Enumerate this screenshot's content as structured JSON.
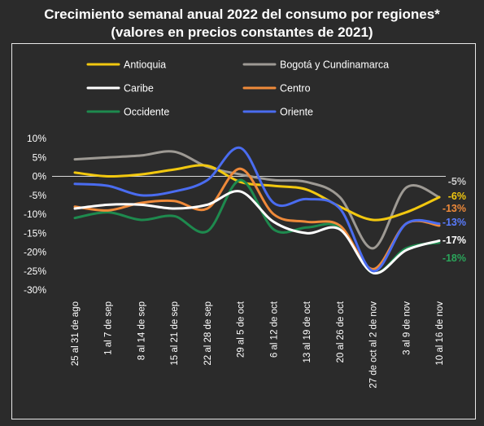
{
  "chart_data": {
    "type": "line",
    "title": "Crecimiento semanal anual 2022 del consumo por regiones*",
    "subtitle": "(valores en precios constantes de 2021)",
    "categories": [
      "25 al 31 de ago",
      "1 al 7 de sep",
      "8 al 14 de sep",
      "15 al 21 de sep",
      "22 al 28 de sep",
      "29 al 5 de oct",
      "6 al 12 de oct",
      "13 al 19 de oct",
      "20 al 26 de oct",
      "27 de oct al 2 de nov",
      "3 al 9 de nov",
      "10 al 16 de nov"
    ],
    "ylim": [
      -30,
      10
    ],
    "yticks": [
      "10%",
      "5%",
      "0%",
      "-5%",
      "-10%",
      "-15%",
      "-20%",
      "-25%",
      "-30%"
    ],
    "legend_position": "top",
    "series": [
      {
        "name": "Antioquia",
        "color": "#f2c80f",
        "end_label": "-6%",
        "end_label_color": "#f2c80f",
        "values": [
          1.0,
          0.0,
          0.5,
          1.8,
          2.8,
          -1.5,
          -2.5,
          -3.5,
          -8.0,
          -11.5,
          -9.5,
          -5.5
        ]
      },
      {
        "name": "Bogotá y Cundinamarca",
        "color": "#9e9a94",
        "end_label": "-5%",
        "end_label_color": "#c8c8c8",
        "values": [
          4.5,
          5.0,
          5.5,
          6.5,
          2.5,
          0.5,
          -1.0,
          -1.5,
          -5.5,
          -19.0,
          -3.0,
          -5.5
        ]
      },
      {
        "name": "Caribe",
        "color": "#ffffff",
        "end_label": "-17%",
        "end_label_color": "#ffffff",
        "values": [
          -8.5,
          -7.5,
          -7.5,
          -8.5,
          -7.5,
          -4.0,
          -12.0,
          -15.0,
          -14.0,
          -25.5,
          -19.5,
          -17.0
        ]
      },
      {
        "name": "Centro",
        "color": "#ef8a3a",
        "end_label": "-13%",
        "end_label_color": "#ef8a3a",
        "values": [
          -8.0,
          -9.0,
          -7.0,
          -6.5,
          -8.5,
          2.0,
          -10.0,
          -12.0,
          -13.0,
          -24.5,
          -12.5,
          -13.0
        ]
      },
      {
        "name": "Occidente",
        "color": "#1e8a4e",
        "end_label": "-18%",
        "end_label_color": "#2aa55a",
        "values": [
          -11.0,
          -9.5,
          -11.5,
          -10.5,
          -14.5,
          -1.0,
          -14.0,
          -13.5,
          -13.5,
          -25.5,
          -19.0,
          -17.5
        ]
      },
      {
        "name": "Oriente",
        "color": "#4a6cf0",
        "end_label": "-13%",
        "end_label_color": "#5a7cff",
        "values": [
          -2.0,
          -2.5,
          -5.0,
          -4.0,
          -1.0,
          7.5,
          -7.0,
          -6.0,
          -8.5,
          -25.0,
          -12.5,
          -12.5
        ]
      }
    ]
  }
}
